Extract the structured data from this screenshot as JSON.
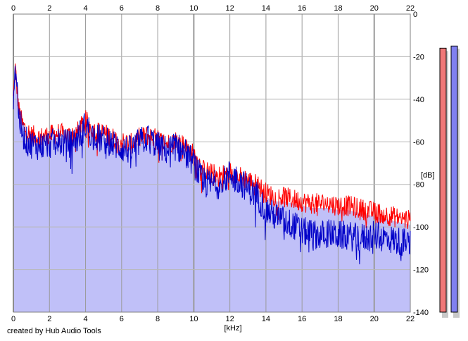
{
  "credit": "created by Hub Audio Tools",
  "chart_data": {
    "type": "area",
    "xlabel": "[kHz]",
    "ylabel": "[dB]",
    "xlim": [
      0,
      22
    ],
    "ylim": [
      -140,
      0
    ],
    "xticks": [
      "0",
      "2",
      "4",
      "6",
      "8",
      "10",
      "12",
      "14",
      "16",
      "18",
      "20",
      "22"
    ],
    "yticks": [
      "0",
      "-20",
      "-40",
      "-60",
      "-80",
      "-100",
      "-120",
      "-140"
    ],
    "grid": true,
    "x": [
      0,
      0.1,
      0.2,
      0.3,
      0.5,
      0.75,
      1,
      1.5,
      2,
      2.5,
      3,
      3.5,
      4,
      4.5,
      5,
      5.5,
      6,
      6.5,
      7,
      7.5,
      8,
      8.5,
      9,
      9.5,
      10,
      10.5,
      11,
      11.5,
      12,
      12.5,
      13,
      13.5,
      14,
      14.5,
      15,
      15.5,
      16,
      16.5,
      17,
      17.5,
      18,
      18.5,
      19,
      19.5,
      20,
      20.5,
      21,
      21.5,
      22
    ],
    "series": [
      {
        "color": "#ff0000",
        "values": [
          -40,
          -25,
          -35,
          -45,
          -52,
          -55,
          -57,
          -58,
          -57,
          -56,
          -57,
          -56,
          -50,
          -55,
          -56,
          -58,
          -60,
          -61,
          -58,
          -57,
          -59,
          -61,
          -59,
          -62,
          -66,
          -73,
          -75,
          -76,
          -74,
          -76,
          -78,
          -80,
          -84,
          -86,
          -86,
          -87,
          -88,
          -89,
          -89,
          -89,
          -90,
          -90,
          -91,
          -92,
          -93,
          -94,
          -95,
          -96,
          -97
        ]
      },
      {
        "color": "#0000c8",
        "values": [
          -38,
          -24,
          -32,
          -48,
          -56,
          -60,
          -61,
          -62,
          -61,
          -60,
          -61,
          -59,
          -52,
          -58,
          -59,
          -61,
          -63,
          -64,
          -60,
          -58,
          -62,
          -64,
          -62,
          -65,
          -70,
          -79,
          -80,
          -80,
          -75,
          -78,
          -82,
          -85,
          -92,
          -95,
          -97,
          -99,
          -102,
          -103,
          -104,
          -103,
          -104,
          -104,
          -105,
          -105,
          -104,
          -105,
          -106,
          -107,
          -108
        ]
      }
    ],
    "fill": {
      "color": "#c0c0f8"
    },
    "level_meters": [
      {
        "color": "#f07878",
        "value_db": -16
      },
      {
        "color": "#8080f0",
        "value_db": -15
      }
    ]
  }
}
